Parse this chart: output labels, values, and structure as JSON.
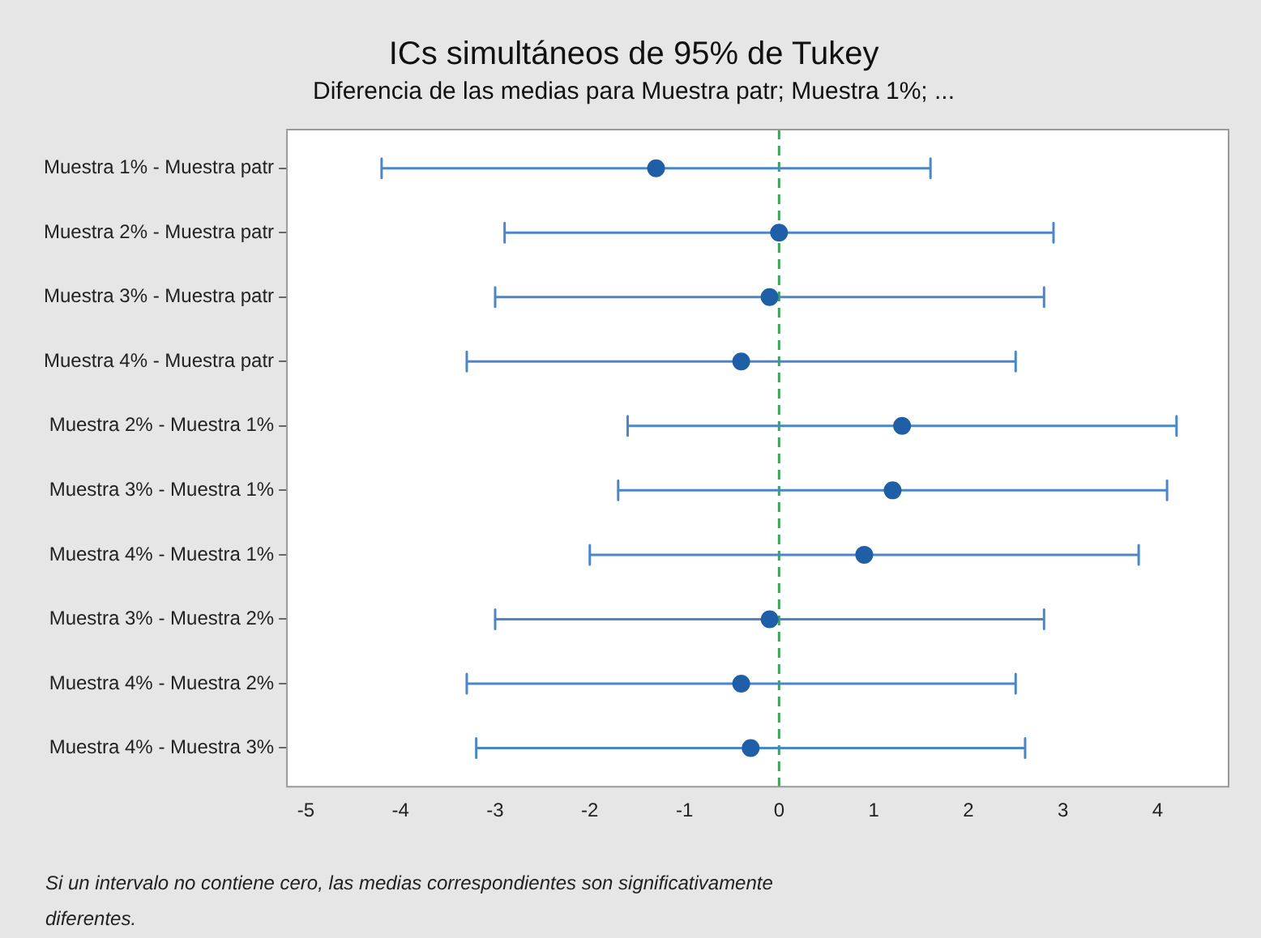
{
  "chart_data": {
    "type": "scatter",
    "orientation": "horizontal",
    "title": "ICs simultáneos de 95% de Tukey",
    "subtitle": "Diferencia de las medias para Muestra patr; Muestra 1%; ...",
    "categories": [
      "Muestra 1% - Muestra patr",
      "Muestra 2% - Muestra patr",
      "Muestra 3% - Muestra patr",
      "Muestra 4% - Muestra patr",
      "Muestra 2% - Muestra 1%",
      "Muestra 3% - Muestra 1%",
      "Muestra 4% - Muestra 1%",
      "Muestra 3% - Muestra 2%",
      "Muestra 4% - Muestra 2%",
      "Muestra 4% - Muestra 3%"
    ],
    "series": [
      {
        "color": "#1f5fa8",
        "values": [
          -1.3,
          0.0,
          -0.1,
          -0.4,
          1.3,
          1.2,
          0.9,
          -0.1,
          -0.4,
          -0.3
        ],
        "errors": [
          [
            -4.2,
            1.6
          ],
          [
            -2.9,
            2.9
          ],
          [
            -3.0,
            2.8
          ],
          [
            -3.3,
            2.5
          ],
          [
            -1.6,
            4.2
          ],
          [
            -1.7,
            4.1
          ],
          [
            -2.0,
            3.8
          ],
          [
            -3.0,
            2.8
          ],
          [
            -3.3,
            2.5
          ],
          [
            -3.2,
            2.6
          ]
        ]
      }
    ],
    "xlim": [
      -5.2,
      4.75
    ],
    "xticks": [
      -5,
      -4,
      -3,
      -2,
      -1,
      0,
      1,
      2,
      3,
      4
    ],
    "ref_lines": [
      {
        "axis": "x",
        "value": 0,
        "color": "#3aa655",
        "line_style": "dashed"
      }
    ],
    "marker": "circle",
    "grid": false,
    "legend": false,
    "annotations": [
      "Si un intervalo no contiene cero, las medias correspondientes son significativamente diferentes."
    ]
  }
}
